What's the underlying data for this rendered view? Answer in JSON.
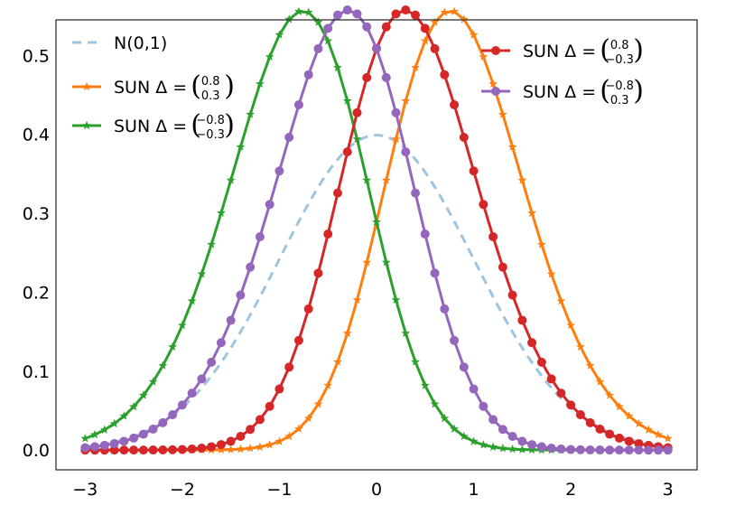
{
  "chart_data": {
    "type": "line",
    "title": "",
    "xlabel": "",
    "ylabel": "",
    "xlim": [
      -3.3,
      3.3
    ],
    "ylim": [
      -0.025,
      0.545
    ],
    "xticks": [
      -3,
      -2,
      -1,
      0,
      1,
      2,
      3
    ],
    "xtick_labels": [
      "−3",
      "−2",
      "−1",
      "0",
      "1",
      "2",
      "3"
    ],
    "yticks": [
      0.0,
      0.1,
      0.2,
      0.3,
      0.4,
      0.5
    ],
    "ytick_labels": [
      "0.0",
      "0.1",
      "0.2",
      "0.3",
      "0.4",
      "0.5"
    ],
    "grid": false,
    "x_range": [
      -3,
      3
    ],
    "samples": 61,
    "series": [
      {
        "name": "N(0,1)",
        "color": "#9ec4e0",
        "style": "dashed",
        "marker": "none",
        "delta": null
      },
      {
        "name": "SUN Δ =",
        "color": "#ff7f0e",
        "style": "solid",
        "marker": "star",
        "delta": [
          "0.8",
          "0.3"
        ],
        "delta_values": [
          0.8,
          0.3
        ]
      },
      {
        "name": "SUN Δ =",
        "color": "#2ca02c",
        "style": "solid",
        "marker": "star",
        "delta": [
          "−0.8",
          "−0.3"
        ],
        "delta_values": [
          -0.8,
          -0.3
        ]
      },
      {
        "name": "SUN Δ =",
        "color": "#d62728",
        "style": "solid",
        "marker": "circle",
        "delta": [
          "0.8",
          "−0.3"
        ],
        "delta_values": [
          0.8,
          -0.3
        ]
      },
      {
        "name": "SUN Δ =",
        "color": "#9467bd",
        "style": "solid",
        "marker": "circle",
        "delta": [
          "−0.8",
          "0.3"
        ],
        "delta_values": [
          -0.8,
          0.3
        ]
      }
    ],
    "legend_left": [
      0,
      1,
      2
    ],
    "legend_right": [
      3,
      4
    ],
    "legend_positions": [
      "top-left",
      "top-right"
    ]
  }
}
